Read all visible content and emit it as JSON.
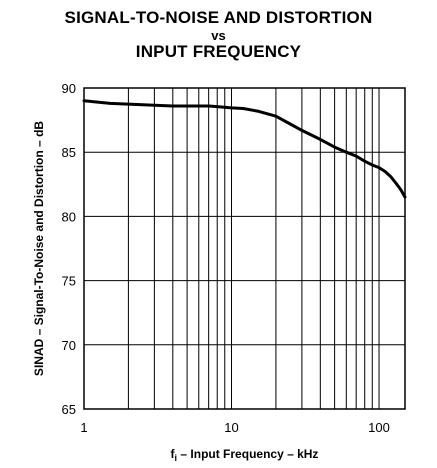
{
  "chart_data": {
    "type": "line",
    "title_line1": "SIGNAL-TO-NOISE AND DISTORTION",
    "title_line2": "vs",
    "title_line3": "INPUT FREQUENCY",
    "xlabel_prefix": "f",
    "xlabel_sub": "i",
    "xlabel_rest": " – Input Frequency – kHz",
    "ylabel": "SINAD – Signal-To-Noise and Distortion – dB",
    "xscale": "log",
    "xlim": [
      1,
      150
    ],
    "ylim": [
      65,
      90
    ],
    "grid": true,
    "xticks": [
      1,
      10,
      100
    ],
    "xtick_labels": [
      "1",
      "10",
      "100"
    ],
    "yticks": [
      65,
      70,
      75,
      80,
      85,
      90
    ],
    "ytick_labels": [
      "65",
      "70",
      "75",
      "80",
      "85",
      "90"
    ],
    "series": [
      {
        "x": [
          1,
          1.5,
          2,
          3,
          4,
          5,
          7,
          8,
          10,
          12,
          15,
          20,
          25,
          30,
          40,
          50,
          60,
          70,
          80,
          90,
          100,
          110,
          120,
          130,
          140,
          150
        ],
        "y": [
          89.0,
          88.8,
          88.75,
          88.65,
          88.6,
          88.6,
          88.6,
          88.55,
          88.45,
          88.4,
          88.2,
          87.8,
          87.2,
          86.7,
          86.0,
          85.4,
          85.0,
          84.7,
          84.3,
          84.0,
          83.8,
          83.5,
          83.1,
          82.6,
          82.1,
          81.5
        ]
      }
    ]
  }
}
